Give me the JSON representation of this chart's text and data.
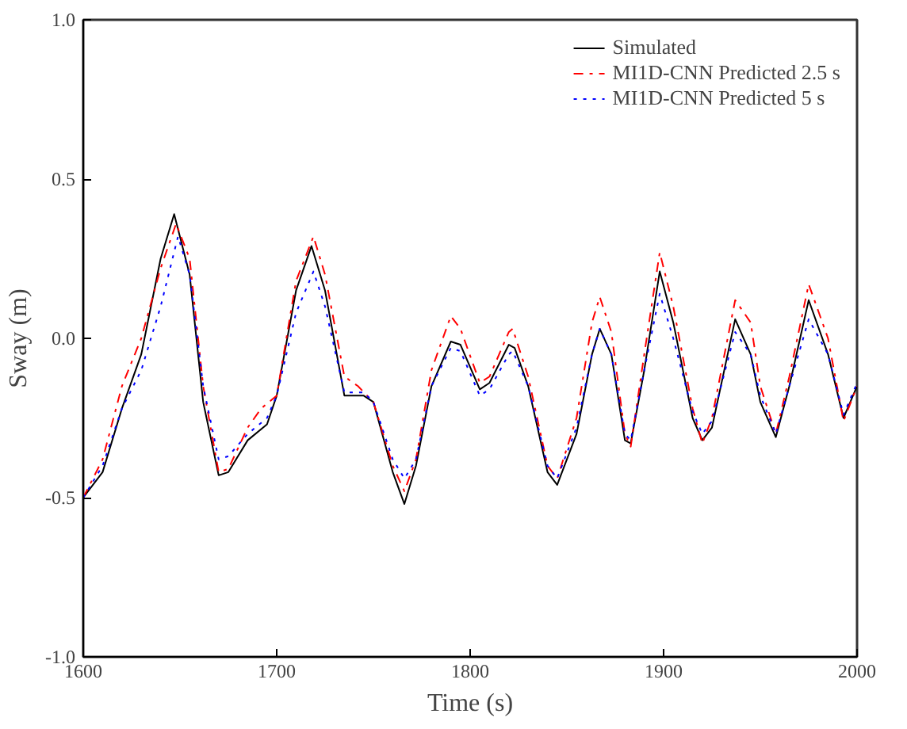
{
  "chart_data": {
    "type": "line",
    "xlabel": "Time (s)",
    "ylabel": "Sway (m)",
    "xlim": [
      1600,
      2000
    ],
    "ylim": [
      -1.0,
      1.0
    ],
    "xticks": [
      1600,
      1700,
      1800,
      1900,
      2000
    ],
    "yticks": [
      {
        "value": -1.0,
        "label": "-1.0"
      },
      {
        "value": -0.5,
        "label": "-0.5"
      },
      {
        "value": 0.0,
        "label": "0.0"
      },
      {
        "value": 0.5,
        "label": "0.5"
      },
      {
        "value": 1.0,
        "label": "1.0"
      }
    ],
    "grid": false,
    "legend": "top right",
    "marker": "none",
    "series": [
      {
        "name": "Simulated",
        "color": "#000000",
        "line_style": "solid",
        "x": [
          1600,
          1610,
          1620,
          1630,
          1640,
          1647,
          1655,
          1662,
          1670,
          1675,
          1685,
          1695,
          1700,
          1710,
          1718,
          1725,
          1735,
          1745,
          1750,
          1760,
          1766,
          1772,
          1780,
          1790,
          1795,
          1805,
          1810,
          1820,
          1823,
          1830,
          1840,
          1845,
          1855,
          1863,
          1867,
          1873,
          1880,
          1883,
          1890,
          1898,
          1905,
          1915,
          1920,
          1925,
          1937,
          1945,
          1950,
          1958,
          1965,
          1975,
          1985,
          1993,
          2000
        ],
        "values": [
          -0.5,
          -0.42,
          -0.22,
          -0.05,
          0.25,
          0.39,
          0.2,
          -0.2,
          -0.43,
          -0.42,
          -0.32,
          -0.27,
          -0.18,
          0.15,
          0.29,
          0.15,
          -0.18,
          -0.18,
          -0.2,
          -0.42,
          -0.52,
          -0.4,
          -0.15,
          -0.01,
          -0.02,
          -0.16,
          -0.14,
          -0.02,
          -0.03,
          -0.15,
          -0.42,
          -0.46,
          -0.3,
          -0.05,
          0.03,
          -0.05,
          -0.32,
          -0.33,
          -0.1,
          0.21,
          0.05,
          -0.25,
          -0.32,
          -0.28,
          0.06,
          -0.05,
          -0.2,
          -0.31,
          -0.15,
          0.12,
          -0.05,
          -0.25,
          -0.15
        ]
      },
      {
        "name": "MI1D-CNN Predicted 2.5 s",
        "color": "#ff0000",
        "line_style": "dashdot",
        "x": [
          1600,
          1610,
          1620,
          1630,
          1640,
          1648,
          1655,
          1662,
          1670,
          1675,
          1685,
          1692,
          1700,
          1710,
          1719,
          1725,
          1735,
          1742,
          1750,
          1760,
          1766,
          1772,
          1780,
          1790,
          1795,
          1805,
          1810,
          1820,
          1822,
          1830,
          1840,
          1845,
          1855,
          1863,
          1867,
          1873,
          1880,
          1883,
          1890,
          1898,
          1905,
          1915,
          1920,
          1925,
          1937,
          1945,
          1950,
          1958,
          1965,
          1975,
          1985,
          1993,
          2000
        ],
        "values": [
          -0.5,
          -0.38,
          -0.15,
          0.0,
          0.22,
          0.36,
          0.25,
          -0.15,
          -0.42,
          -0.41,
          -0.28,
          -0.22,
          -0.18,
          0.18,
          0.32,
          0.2,
          -0.12,
          -0.15,
          -0.2,
          -0.4,
          -0.48,
          -0.38,
          -0.1,
          0.07,
          0.03,
          -0.14,
          -0.12,
          0.02,
          0.03,
          -0.12,
          -0.4,
          -0.44,
          -0.25,
          0.05,
          0.13,
          0.02,
          -0.3,
          -0.34,
          -0.05,
          0.27,
          0.1,
          -0.22,
          -0.33,
          -0.25,
          0.12,
          0.05,
          -0.15,
          -0.3,
          -0.12,
          0.17,
          0.0,
          -0.26,
          -0.15
        ]
      },
      {
        "name": "MI1D-CNN Predicted 5 s",
        "color": "#0000ff",
        "line_style": "dotted",
        "x": [
          1600,
          1610,
          1620,
          1630,
          1640,
          1649,
          1655,
          1662,
          1670,
          1675,
          1685,
          1695,
          1700,
          1710,
          1719,
          1725,
          1735,
          1745,
          1750,
          1760,
          1766,
          1772,
          1780,
          1790,
          1795,
          1805,
          1810,
          1820,
          1822,
          1830,
          1840,
          1845,
          1855,
          1863,
          1867,
          1873,
          1880,
          1883,
          1890,
          1898,
          1905,
          1915,
          1920,
          1925,
          1937,
          1945,
          1950,
          1958,
          1965,
          1975,
          1985,
          1993,
          2000
        ],
        "values": [
          -0.5,
          -0.4,
          -0.22,
          -0.1,
          0.1,
          0.32,
          0.2,
          -0.15,
          -0.38,
          -0.37,
          -0.3,
          -0.25,
          -0.18,
          0.08,
          0.21,
          0.1,
          -0.17,
          -0.17,
          -0.2,
          -0.38,
          -0.44,
          -0.38,
          -0.15,
          -0.03,
          -0.04,
          -0.18,
          -0.16,
          -0.05,
          -0.04,
          -0.15,
          -0.4,
          -0.44,
          -0.28,
          -0.05,
          0.03,
          -0.05,
          -0.3,
          -0.32,
          -0.1,
          0.14,
          0.0,
          -0.23,
          -0.3,
          -0.26,
          0.02,
          -0.05,
          -0.18,
          -0.3,
          -0.15,
          0.06,
          -0.05,
          -0.24,
          -0.14
        ]
      }
    ]
  }
}
